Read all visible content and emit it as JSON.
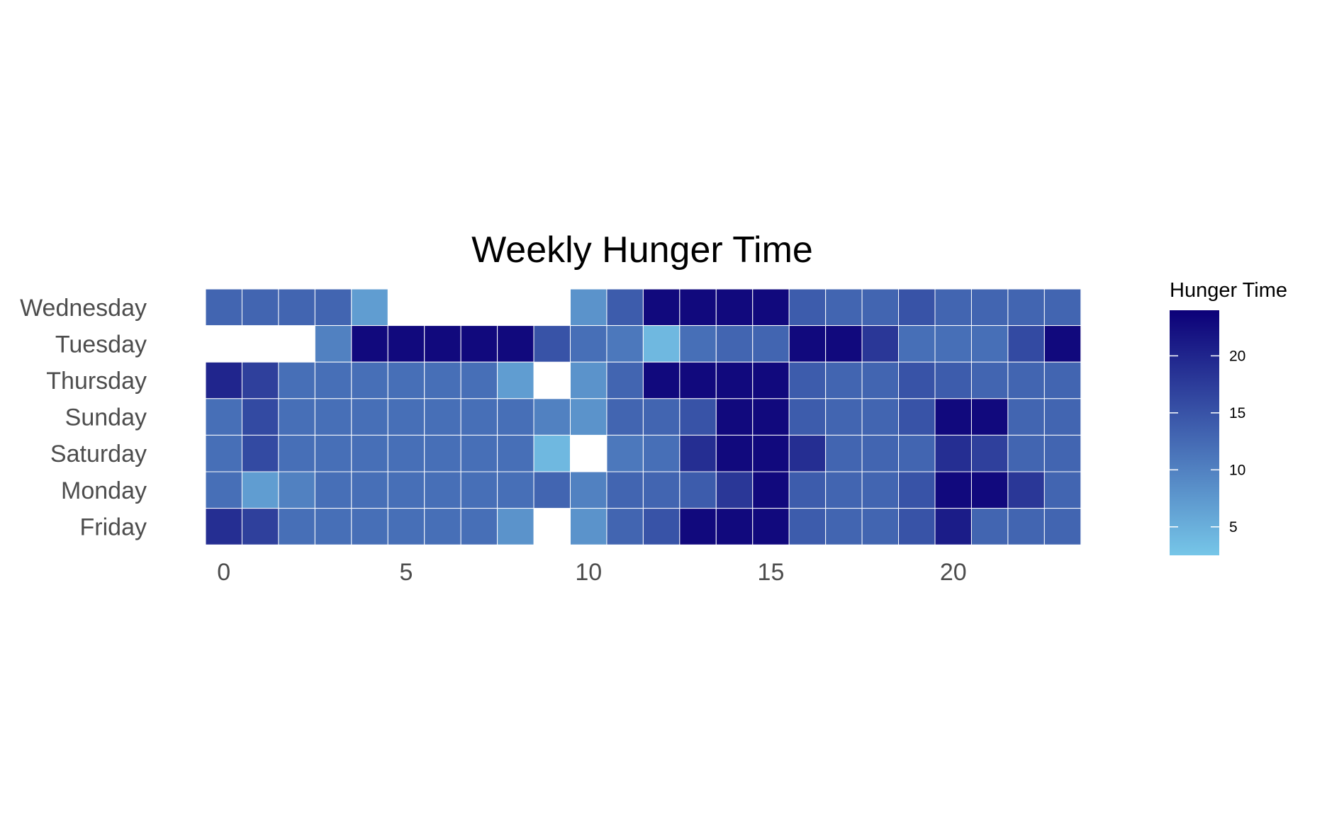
{
  "chart_data": {
    "type": "heatmap",
    "title": "Weekly Hunger Time",
    "xlabel": "",
    "ylabel": "",
    "x": [
      0,
      1,
      2,
      3,
      4,
      5,
      6,
      7,
      8,
      9,
      10,
      11,
      12,
      13,
      14,
      15,
      16,
      17,
      18,
      19,
      20,
      21,
      22,
      23
    ],
    "x_ticks": [
      "0",
      "5",
      "10",
      "15",
      "20"
    ],
    "x_tick_values": [
      0,
      5,
      10,
      15,
      20
    ],
    "y": [
      "Wednesday",
      "Tuesday",
      "Thursday",
      "Sunday",
      "Saturday",
      "Monday",
      "Friday"
    ],
    "values": [
      [
        13,
        13,
        13,
        13,
        7,
        null,
        null,
        null,
        null,
        null,
        8,
        14,
        23,
        23,
        23,
        23,
        14,
        13,
        13,
        15,
        13,
        13,
        13,
        13
      ],
      [
        null,
        null,
        null,
        10,
        23,
        23,
        23,
        23,
        23,
        15,
        12,
        11,
        4,
        12,
        13,
        13,
        23,
        23,
        18,
        12,
        12,
        12,
        16,
        23
      ],
      [
        20,
        17,
        12,
        12,
        12,
        12,
        12,
        12,
        7,
        null,
        8,
        13,
        23,
        23,
        23,
        23,
        14,
        13,
        13,
        15,
        14,
        13,
        13,
        13
      ],
      [
        12,
        16,
        12,
        12,
        12,
        12,
        12,
        12,
        12,
        10,
        8,
        13,
        13,
        15,
        23,
        23,
        14,
        13,
        13,
        15,
        23,
        23,
        13,
        13
      ],
      [
        12,
        16,
        12,
        12,
        12,
        12,
        12,
        12,
        12,
        4,
        null,
        11,
        12,
        19,
        23,
        23,
        19,
        13,
        13,
        13,
        19,
        17,
        13,
        13
      ],
      [
        12,
        7,
        10,
        12,
        12,
        12,
        12,
        12,
        12,
        13,
        10,
        13,
        13,
        14,
        18,
        23,
        14,
        13,
        13,
        15,
        23,
        23,
        18,
        13
      ],
      [
        19,
        17,
        12,
        12,
        12,
        12,
        12,
        12,
        8,
        null,
        8,
        13,
        15,
        23,
        23,
        23,
        14,
        13,
        13,
        15,
        21,
        13,
        13,
        13
      ]
    ],
    "color_min": 2.5,
    "color_max": 24,
    "color_low": "#76c6e8",
    "color_high": "#0c0078",
    "cell_border_color": "#ffffff",
    "grid": false,
    "legend": {
      "title": "Hunger Time",
      "placement": "right",
      "ticks": [
        "5",
        "10",
        "15",
        "20"
      ],
      "tick_values": [
        5,
        10,
        15,
        20
      ]
    }
  }
}
